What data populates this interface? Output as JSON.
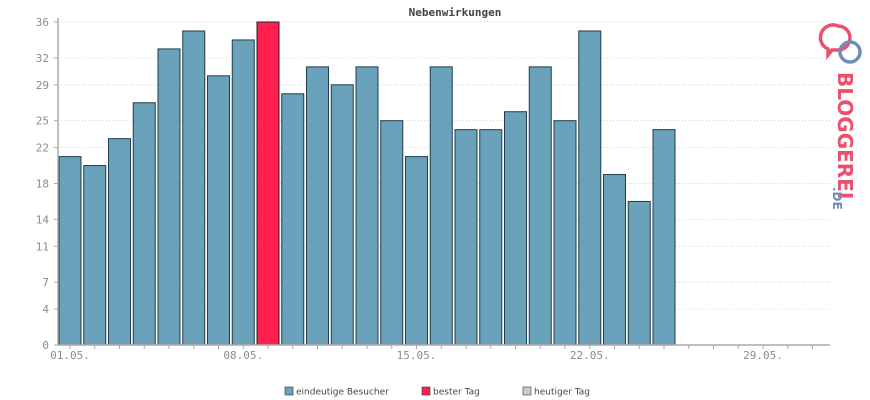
{
  "chart_data": {
    "type": "bar",
    "title": "Nebenwirkungen",
    "ylim": [
      0,
      36
    ],
    "y_ticks": [
      "0",
      "4",
      "7",
      "11",
      "14",
      "18",
      "22",
      "25",
      "29",
      "32",
      "36"
    ],
    "x_tick_labels": [
      {
        "index": 0,
        "label": "01.05."
      },
      {
        "index": 7,
        "label": "08.05."
      },
      {
        "index": 14,
        "label": "15.05."
      },
      {
        "index": 21,
        "label": "22.05."
      },
      {
        "index": 28,
        "label": "29.05."
      }
    ],
    "total_days": 31,
    "values": [
      21,
      20,
      23,
      27,
      33,
      35,
      30,
      34,
      36,
      28,
      31,
      29,
      31,
      25,
      21,
      31,
      24,
      24,
      26,
      31,
      25,
      35,
      19,
      16,
      24
    ],
    "best_day_index": 8,
    "series": [
      {
        "name": "eindeutige Besucher",
        "color": "#6aa1bb"
      },
      {
        "name": "bester Tag",
        "color": "#ff2050"
      },
      {
        "name": "heutiger Tag",
        "color": "#cccccc"
      }
    ],
    "grid": true,
    "legend_position": "bottom"
  },
  "logo": {
    "text_main": "BLOGGEREI",
    "text_suffix": ".DE",
    "color_main": "#e9516e",
    "color_suffix": "#6d8fb5"
  }
}
